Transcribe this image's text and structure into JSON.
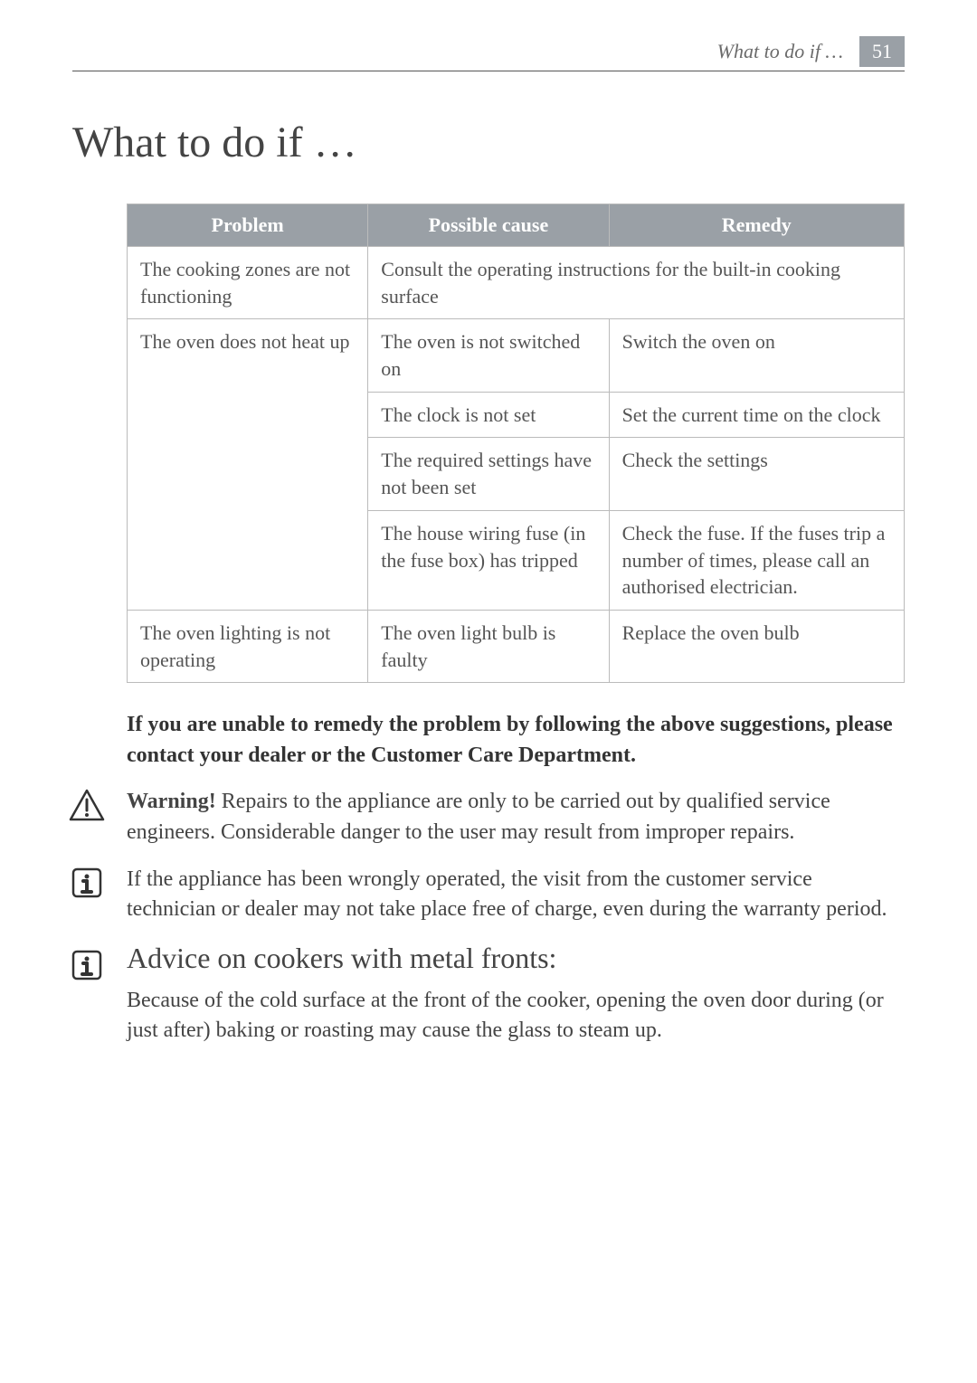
{
  "header": {
    "section_title": "What to do if …",
    "page_number": "51"
  },
  "main_heading": "What to do if …",
  "table": {
    "columns": [
      "Problem",
      "Possible cause",
      "Remedy"
    ],
    "rows": [
      {
        "problem": "The cooking zones are not functioning",
        "cause_colspan": "Consult the operating instructions for the built-in cooking surface"
      },
      {
        "problem": "The oven does not heat up",
        "problem_rowspan": 4,
        "cause": "The oven is not switched on",
        "remedy": "Switch the oven on"
      },
      {
        "cause": "The clock is not set",
        "remedy": "Set the current time on the clock"
      },
      {
        "cause": "The required settings have not been set",
        "remedy": "Check the settings"
      },
      {
        "cause": "The house wiring fuse (in the fuse box) has tripped",
        "remedy": "Check the fuse. If the fuses trip a number of times, please call an authorised electrician."
      },
      {
        "problem": "The oven lighting is not operating",
        "cause": "The oven light bulb is faulty",
        "remedy": "Replace the oven bulb"
      }
    ]
  },
  "paragraphs": {
    "p1": "If you are unable to remedy the problem by following the above suggestions, please contact your dealer or the Customer Care Department.",
    "p2_prefix": "Warning!",
    "p2_rest": " Repairs to the appliance are only to be carried out by qualified service engineers. Considerable danger to the user may result from improper repairs.",
    "p3": "If the appliance has been wrongly operated, the visit from the customer service technician or dealer may not take place free of charge, even during the warranty period.",
    "h2": "Advice on cookers with metal fronts:",
    "p4": "Because of the cold surface at the front of the cooker, opening the oven door during (or just after) baking or roasting may cause the glass to steam up."
  },
  "column_widths": [
    "31%",
    "31%",
    "38%"
  ]
}
